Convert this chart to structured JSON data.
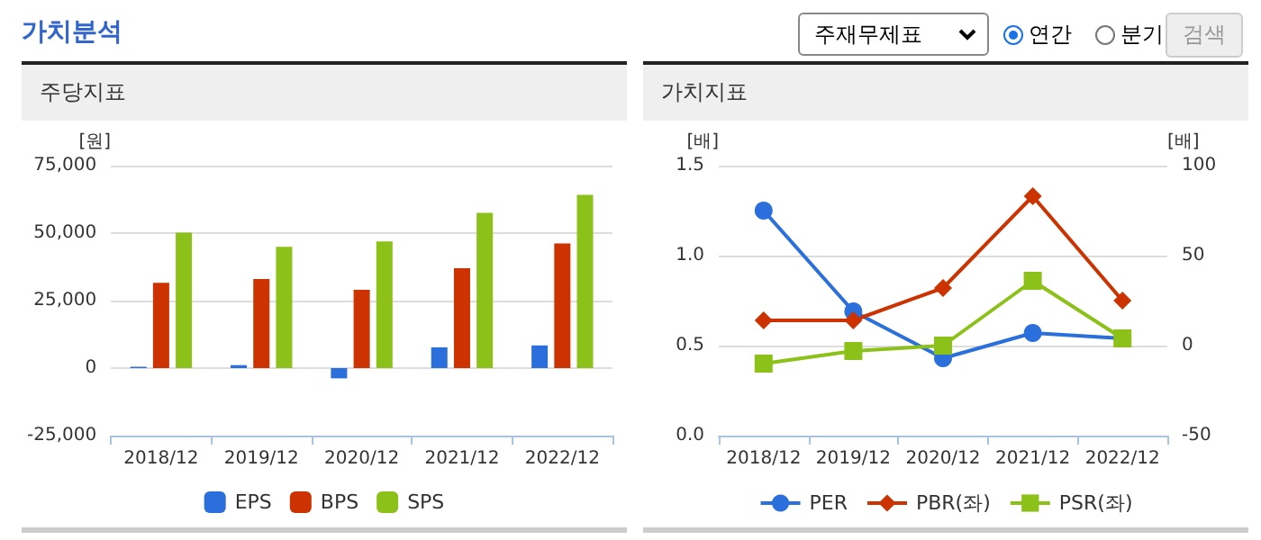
{
  "chart_data": [
    {
      "type": "bar",
      "title": "주당지표",
      "annotations": [
        "가치분석",
        "주재무제표",
        "연간",
        "분기",
        "검색"
      ],
      "ylabel": "[원]",
      "categories": [
        "2018/12",
        "2019/12",
        "2020/12",
        "2021/12",
        "2022/12"
      ],
      "series": [
        {
          "name": "EPS",
          "color": "#2a6fdb",
          "values": [
            500,
            1100,
            -3800,
            7700,
            8400
          ]
        },
        {
          "name": "BPS",
          "color": "#cc3300",
          "values": [
            31600,
            33000,
            29000,
            37000,
            46200
          ]
        },
        {
          "name": "SPS",
          "color": "#8cc11a",
          "values": [
            50200,
            44900,
            46900,
            57500,
            64200
          ]
        }
      ],
      "ylim": [
        -25000,
        75000
      ],
      "yticks": [
        {
          "value": -25000,
          "label": "-25,000"
        },
        {
          "value": 0,
          "label": "0"
        },
        {
          "value": 25000,
          "label": "25,000"
        },
        {
          "value": 50000,
          "label": "50,000"
        },
        {
          "value": 75000,
          "label": "75,000"
        }
      ],
      "grid": "y",
      "legend": "bottom"
    },
    {
      "type": "line",
      "title": "가치지표",
      "ylabel": "[배]",
      "y2label": "[배]",
      "categories": [
        "2018/12",
        "2019/12",
        "2020/12",
        "2021/12",
        "2022/12"
      ],
      "series": [
        {
          "name": "PER",
          "color": "#2a6fdb",
          "axis": "y2",
          "marker": "circle",
          "values": [
            75,
            19,
            -7,
            7,
            4
          ]
        },
        {
          "name": "PBR(좌)",
          "color": "#cc3300",
          "marker": "diamond",
          "values": [
            0.64,
            0.64,
            0.82,
            1.33,
            0.75
          ]
        },
        {
          "name": "PSR(좌)",
          "color": "#8cc11a",
          "marker": "square",
          "values": [
            0.4,
            0.47,
            0.5,
            0.86,
            0.54
          ]
        }
      ],
      "ylim": [
        0,
        1.5
      ],
      "yticks": [
        {
          "value": 0,
          "label": "0.0"
        },
        {
          "value": 0.5,
          "label": "0.5"
        },
        {
          "value": 1,
          "label": "1.0"
        },
        {
          "value": 1.5,
          "label": "1.5"
        }
      ],
      "y2lim": [
        -50,
        100
      ],
      "y2ticks": [
        -50,
        0,
        50,
        100
      ],
      "grid": "y",
      "legend": "bottom"
    }
  ]
}
